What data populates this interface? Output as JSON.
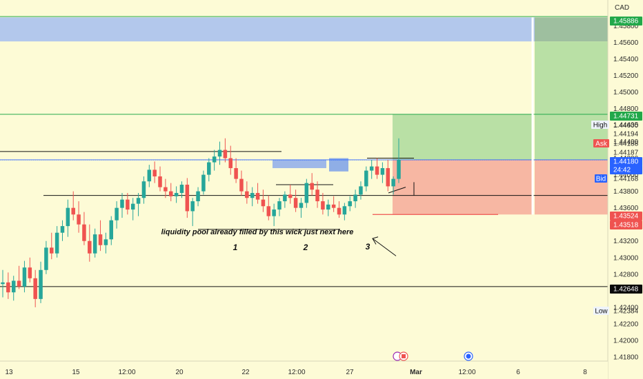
{
  "chart_data": {
    "type": "candlestick",
    "currency": "CAD",
    "ylim": [
      1.4175,
      1.4611
    ],
    "y_ticks": [
      1.418,
      1.42,
      1.422,
      1.424,
      1.426,
      1.428,
      1.43,
      1.432,
      1.434,
      1.436,
      1.438,
      1.44,
      1.442,
      1.444,
      1.446,
      1.448,
      1.45,
      1.452,
      1.454,
      1.456,
      1.458
    ],
    "x_ticks": [
      "13",
      "15",
      "12:00",
      "20",
      "22",
      "12:00",
      "27",
      "Mar",
      "12:00",
      "6",
      "8"
    ],
    "price_tags": [
      {
        "label": "",
        "value": "1.45886",
        "bg": "#22a84a",
        "fg": "#ffffff"
      },
      {
        "label": "",
        "value": "1.44731",
        "bg": "#22a84a",
        "fg": "#ffffff"
      },
      {
        "label": "High",
        "value": "1.44435",
        "bg": "#eef3fb",
        "fg": "#111111"
      },
      {
        "label": "",
        "value": "1.44194",
        "bg": "",
        "fg": "#2b2b2b"
      },
      {
        "label": "Ask",
        "value": "1.44188",
        "bg": "#ef5350",
        "fg": "#ffffff"
      },
      {
        "label": "",
        "value": "1.44187",
        "bg": "",
        "fg": "#2b2b2b"
      },
      {
        "label": "",
        "value": "1.44180",
        "bg": "#2962ff",
        "fg": "#ffffff"
      },
      {
        "label": "",
        "value": "24:42",
        "bg": "#2962ff",
        "fg": "#ffffff"
      },
      {
        "label": "Bid",
        "value": "1.44168",
        "bg": "#2962ff",
        "fg": "#ffffff"
      },
      {
        "label": "",
        "value": "1.43524",
        "bg": "#ef5350",
        "fg": "#ffffff"
      },
      {
        "label": "",
        "value": "1.43518",
        "bg": "#ef5350",
        "fg": "#ffffff"
      },
      {
        "label": "",
        "value": "1.42648",
        "bg": "#0a0a0a",
        "fg": "#ffffff"
      },
      {
        "label": "Low",
        "value": "1.42384",
        "bg": "#eef3fb",
        "fg": "#111111"
      }
    ],
    "annotations": [
      {
        "text": "liquidity pool already filled by this wick just next here"
      },
      {
        "text": "1"
      },
      {
        "text": "2"
      },
      {
        "text": "3"
      }
    ],
    "colors": {
      "up": "#26a69a",
      "down": "#ef5350",
      "target_zone": "#b9e0a5",
      "stop_zone": "#f7b7a3",
      "supply_zone": "#b3c8ec"
    },
    "grid": false,
    "candles": [
      [
        1.4268,
        1.4285,
        1.4252,
        1.427
      ],
      [
        1.427,
        1.4282,
        1.425,
        1.4258
      ],
      [
        1.4258,
        1.4278,
        1.4248,
        1.4272
      ],
      [
        1.4272,
        1.429,
        1.4262,
        1.4265
      ],
      [
        1.4265,
        1.4296,
        1.4258,
        1.4288
      ],
      [
        1.4288,
        1.43,
        1.427,
        1.4275
      ],
      [
        1.4275,
        1.4285,
        1.424,
        1.425
      ],
      [
        1.425,
        1.4295,
        1.4245,
        1.4285
      ],
      [
        1.4285,
        1.432,
        1.428,
        1.4312
      ],
      [
        1.4312,
        1.433,
        1.4298,
        1.4305
      ],
      [
        1.4305,
        1.4338,
        1.43,
        1.433
      ],
      [
        1.433,
        1.4345,
        1.432,
        1.4338
      ],
      [
        1.4338,
        1.437,
        1.4325,
        1.436
      ],
      [
        1.436,
        1.438,
        1.4345,
        1.4352
      ],
      [
        1.4352,
        1.4368,
        1.433,
        1.434
      ],
      [
        1.434,
        1.4355,
        1.4315,
        1.432
      ],
      [
        1.432,
        1.434,
        1.4295,
        1.4305
      ],
      [
        1.4305,
        1.4335,
        1.43,
        1.4328
      ],
      [
        1.4328,
        1.4345,
        1.4308,
        1.4315
      ],
      [
        1.4315,
        1.433,
        1.4305,
        1.4322
      ],
      [
        1.4322,
        1.435,
        1.4315,
        1.4345
      ],
      [
        1.4345,
        1.4368,
        1.4335,
        1.436
      ],
      [
        1.436,
        1.4378,
        1.4348,
        1.437
      ],
      [
        1.437,
        1.4378,
        1.4352,
        1.4358
      ],
      [
        1.4358,
        1.4372,
        1.4345,
        1.4365
      ],
      [
        1.4365,
        1.4378,
        1.435,
        1.4372
      ],
      [
        1.4372,
        1.4398,
        1.4365,
        1.4392
      ],
      [
        1.4392,
        1.4412,
        1.4385,
        1.4406
      ],
      [
        1.4406,
        1.4416,
        1.439,
        1.4398
      ],
      [
        1.4398,
        1.441,
        1.438,
        1.4385
      ],
      [
        1.4385,
        1.4395,
        1.4372,
        1.438
      ],
      [
        1.438,
        1.439,
        1.4368,
        1.4374
      ],
      [
        1.4374,
        1.4386,
        1.4366,
        1.4378
      ],
      [
        1.4378,
        1.4392,
        1.4372,
        1.4388
      ],
      [
        1.4388,
        1.4396,
        1.4348,
        1.4356
      ],
      [
        1.4356,
        1.4372,
        1.4338,
        1.4368
      ],
      [
        1.4368,
        1.4385,
        1.4362,
        1.438
      ],
      [
        1.438,
        1.4405,
        1.4376,
        1.44
      ],
      [
        1.44,
        1.442,
        1.4392,
        1.4415
      ],
      [
        1.4415,
        1.443,
        1.4405,
        1.4422
      ],
      [
        1.4422,
        1.444,
        1.4412,
        1.443
      ],
      [
        1.443,
        1.4444,
        1.4415,
        1.442
      ],
      [
        1.442,
        1.4435,
        1.44,
        1.4408
      ],
      [
        1.4408,
        1.442,
        1.439,
        1.4395
      ],
      [
        1.4395,
        1.4405,
        1.4375,
        1.438
      ],
      [
        1.438,
        1.4392,
        1.4365,
        1.4372
      ],
      [
        1.4372,
        1.4385,
        1.4362,
        1.4378
      ],
      [
        1.4378,
        1.439,
        1.4365,
        1.437
      ],
      [
        1.437,
        1.4382,
        1.4355,
        1.4362
      ],
      [
        1.4362,
        1.4375,
        1.4345,
        1.435
      ],
      [
        1.435,
        1.4365,
        1.4338,
        1.4358
      ],
      [
        1.4358,
        1.4372,
        1.435,
        1.4368
      ],
      [
        1.4368,
        1.438,
        1.436,
        1.4376
      ],
      [
        1.4376,
        1.4388,
        1.4365,
        1.4372
      ],
      [
        1.4372,
        1.4382,
        1.4355,
        1.436
      ],
      [
        1.436,
        1.4372,
        1.4348,
        1.4366
      ],
      [
        1.4366,
        1.4395,
        1.436,
        1.439
      ],
      [
        1.439,
        1.4402,
        1.4375,
        1.4382
      ],
      [
        1.4382,
        1.4392,
        1.436,
        1.4368
      ],
      [
        1.4368,
        1.4378,
        1.4352,
        1.4358
      ],
      [
        1.4358,
        1.437,
        1.435,
        1.4364
      ],
      [
        1.4364,
        1.4374,
        1.4355,
        1.436
      ],
      [
        1.436,
        1.4368,
        1.4348,
        1.4352
      ],
      [
        1.4352,
        1.4366,
        1.4345,
        1.4362
      ],
      [
        1.4362,
        1.4374,
        1.4356,
        1.4368
      ],
      [
        1.4368,
        1.4382,
        1.436,
        1.4376
      ],
      [
        1.4376,
        1.4392,
        1.437,
        1.4386
      ],
      [
        1.4386,
        1.441,
        1.438,
        1.4405
      ],
      [
        1.4405,
        1.4418,
        1.4395,
        1.441
      ],
      [
        1.441,
        1.442,
        1.4395,
        1.44
      ],
      [
        1.44,
        1.4415,
        1.439,
        1.4408
      ],
      [
        1.4408,
        1.4418,
        1.438,
        1.4386
      ],
      [
        1.4386,
        1.4398,
        1.4376,
        1.4395
      ],
      [
        1.4395,
        1.4444,
        1.439,
        1.4418
      ]
    ]
  }
}
